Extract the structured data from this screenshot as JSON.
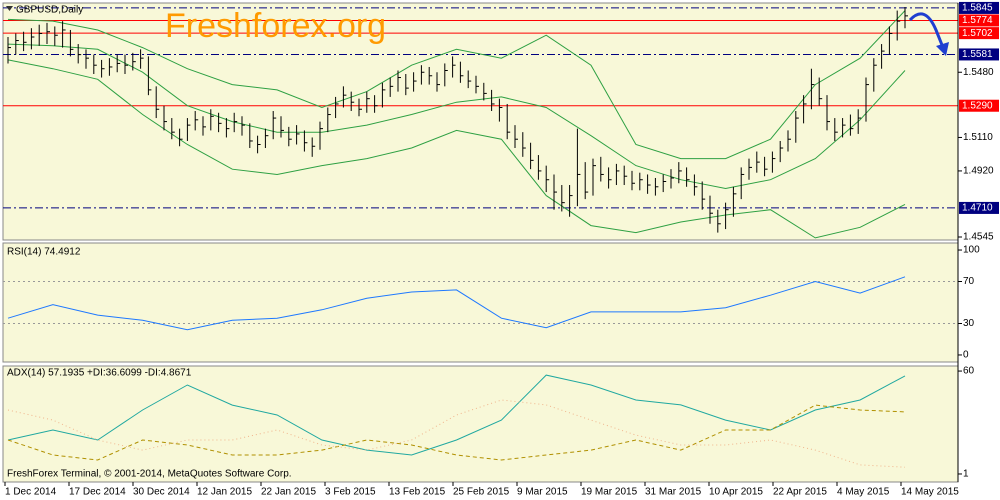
{
  "chart_data": [
    {
      "type": "ohlc",
      "title": "GBPUSD,Daily",
      "annotation": "Freshforex.org",
      "x_labels": [
        "1 Dec 2014",
        "17 Dec 2014",
        "30 Dec 2014",
        "12 Jan 2015",
        "22 Jan 2015",
        "3 Feb 2015",
        "13 Feb 2015",
        "25 Feb 2015",
        "9 Mar 2015",
        "19 Mar 2015",
        "31 Mar 2015",
        "10 Apr 2015",
        "22 Apr 2015",
        "4 May 2015",
        "14 May 2015"
      ],
      "color": "#000000",
      "high": [
        1.568,
        1.57,
        1.571,
        1.573,
        1.575,
        1.576,
        1.574,
        1.577,
        1.572,
        1.564,
        1.561,
        1.558,
        1.555,
        1.556,
        1.558,
        1.558,
        1.559,
        1.561,
        1.557,
        1.54,
        1.529,
        1.522,
        1.516,
        1.522,
        1.526,
        1.523,
        1.527,
        1.525,
        1.522,
        1.525,
        1.523,
        1.519,
        1.512,
        1.516,
        1.526,
        1.523,
        1.517,
        1.518,
        1.515,
        1.511,
        1.52,
        1.528,
        1.534,
        1.54,
        1.537,
        1.533,
        1.537,
        1.535,
        1.542,
        1.545,
        1.549,
        1.547,
        1.548,
        1.552,
        1.551,
        1.548,
        1.553,
        1.557,
        1.554,
        1.549,
        1.546,
        1.542,
        1.538,
        1.533,
        1.53,
        1.518,
        1.514,
        1.508,
        1.501,
        1.495,
        1.49,
        1.484,
        1.484,
        1.516,
        1.497,
        1.499,
        1.5,
        1.494,
        1.496,
        1.495,
        1.492,
        1.491,
        1.49,
        1.488,
        1.49,
        1.493,
        1.497,
        1.494,
        1.49,
        1.486,
        1.478,
        1.47,
        1.474,
        1.483,
        1.494,
        1.499,
        1.503,
        1.5,
        1.503,
        1.509,
        1.515,
        1.526,
        1.535,
        1.55,
        1.545,
        1.535,
        1.522,
        1.522,
        1.524,
        1.527,
        1.545,
        1.556,
        1.564,
        1.574,
        1.583,
        1.585
      ],
      "low": [
        1.553,
        1.558,
        1.56,
        1.561,
        1.563,
        1.564,
        1.563,
        1.562,
        1.557,
        1.553,
        1.55,
        1.547,
        1.545,
        1.546,
        1.548,
        1.547,
        1.549,
        1.55,
        1.535,
        1.522,
        1.515,
        1.51,
        1.506,
        1.509,
        1.515,
        1.512,
        1.515,
        1.514,
        1.511,
        1.514,
        1.512,
        1.505,
        1.502,
        1.505,
        1.51,
        1.511,
        1.506,
        1.507,
        1.503,
        1.5,
        1.504,
        1.514,
        1.522,
        1.528,
        1.526,
        1.523,
        1.525,
        1.525,
        1.528,
        1.534,
        1.537,
        1.535,
        1.537,
        1.541,
        1.541,
        1.537,
        1.54,
        1.545,
        1.542,
        1.539,
        1.536,
        1.532,
        1.526,
        1.52,
        1.51,
        1.505,
        1.5,
        1.493,
        1.487,
        1.48,
        1.47,
        1.469,
        1.466,
        1.472,
        1.476,
        1.478,
        1.486,
        1.482,
        1.484,
        1.484,
        1.481,
        1.481,
        1.479,
        1.478,
        1.48,
        1.482,
        1.485,
        1.483,
        1.478,
        1.47,
        1.462,
        1.457,
        1.459,
        1.466,
        1.476,
        1.487,
        1.491,
        1.489,
        1.491,
        1.497,
        1.503,
        1.508,
        1.519,
        1.527,
        1.529,
        1.515,
        1.509,
        1.511,
        1.512,
        1.513,
        1.52,
        1.537,
        1.55,
        1.558,
        1.566,
        1.573
      ],
      "close": [
        1.562,
        1.566,
        1.565,
        1.568,
        1.57,
        1.571,
        1.569,
        1.572,
        1.561,
        1.558,
        1.556,
        1.552,
        1.55,
        1.551,
        1.553,
        1.552,
        1.554,
        1.556,
        1.538,
        1.527,
        1.52,
        1.514,
        1.51,
        1.518,
        1.521,
        1.517,
        1.523,
        1.519,
        1.516,
        1.52,
        1.518,
        1.509,
        1.507,
        1.512,
        1.522,
        1.515,
        1.51,
        1.513,
        1.508,
        1.506,
        1.516,
        1.524,
        1.53,
        1.535,
        1.531,
        1.527,
        1.533,
        1.529,
        1.538,
        1.54,
        1.545,
        1.539,
        1.543,
        1.548,
        1.546,
        1.541,
        1.549,
        1.552,
        1.546,
        1.543,
        1.54,
        1.536,
        1.53,
        1.528,
        1.514,
        1.51,
        1.505,
        1.498,
        1.492,
        1.487,
        1.48,
        1.474,
        1.478,
        1.49,
        1.48,
        1.495,
        1.49,
        1.487,
        1.492,
        1.489,
        1.485,
        1.487,
        1.484,
        1.483,
        1.486,
        1.488,
        1.492,
        1.487,
        1.483,
        1.476,
        1.468,
        1.462,
        1.47,
        1.479,
        1.49,
        1.494,
        1.497,
        1.493,
        1.499,
        1.505,
        1.51,
        1.522,
        1.53,
        1.541,
        1.533,
        1.52,
        1.514,
        1.518,
        1.516,
        1.522,
        1.541,
        1.552,
        1.56,
        1.57,
        1.577,
        1.58
      ],
      "bands": [
        {
          "color": "#2ea043",
          "values": [
            1.578,
            1.577,
            1.572,
            1.562,
            1.55,
            1.541,
            1.538,
            1.528,
            1.537,
            1.552,
            1.561,
            1.556,
            1.569,
            1.552,
            1.507,
            1.499,
            1.499,
            1.51,
            1.541,
            1.556,
            1.583
          ]
        },
        {
          "color": "#2ea043",
          "values": [
            1.564,
            1.563,
            1.561,
            1.548,
            1.529,
            1.52,
            1.514,
            1.514,
            1.518,
            1.524,
            1.531,
            1.534,
            1.528,
            1.512,
            1.495,
            1.487,
            1.482,
            1.487,
            1.499,
            1.521,
            1.549
          ]
        },
        {
          "color": "#2ea043",
          "values": [
            1.555,
            1.55,
            1.544,
            1.524,
            1.507,
            1.493,
            1.49,
            1.495,
            1.499,
            1.505,
            1.515,
            1.51,
            1.478,
            1.461,
            1.457,
            1.463,
            1.467,
            1.47,
            1.454,
            1.46,
            1.473
          ]
        }
      ],
      "ylim": [
        1.4528,
        1.5873
      ],
      "yticks": [
        {
          "value": 1.548,
          "label": "1.5480"
        },
        {
          "value": 1.511,
          "label": "1.5110"
        },
        {
          "value": 1.492,
          "label": "1.4920"
        },
        1.4545
      ],
      "levels": [
        {
          "value": 1.5845,
          "label": "1.5845",
          "color": "#000080",
          "style": "dashdot"
        },
        {
          "value": 1.5774,
          "label": "1.5774",
          "color": "#ff0000",
          "style": "solid"
        },
        {
          "value": 1.5702,
          "label": "1.5702",
          "color": "#ff0000",
          "style": "solid"
        },
        {
          "value": 1.5581,
          "label": "1.5581",
          "color": "#000080",
          "style": "dashdot"
        },
        {
          "value": 1.529,
          "label": "1.5290",
          "color": "#ff0000",
          "style": "solid"
        },
        {
          "value": 1.471,
          "label": "1.4710",
          "color": "#000080",
          "style": "dashdot"
        }
      ]
    },
    {
      "type": "line",
      "title": "RSI(14) 74.4912",
      "series": [
        {
          "color": "#1e78ff",
          "values": [
            35,
            48,
            38,
            33,
            24,
            33,
            35,
            43,
            54,
            60,
            62,
            35,
            26,
            41,
            41,
            41,
            45,
            57,
            70,
            59,
            74.5
          ]
        }
      ],
      "ylim": [
        -6.7,
        106.7
      ],
      "yticks": [
        100,
        70,
        30,
        0
      ],
      "levels": [
        70,
        30
      ]
    },
    {
      "type": "line",
      "title": "ADX(14) 57.1935 +DI:36.6099 -DI:4.8671",
      "footer": "FreshForex Terminal, © 2001-2014, MetaQuotes Software Corp.",
      "series": [
        {
          "color": "#20a8a0",
          "style": "solid",
          "values": [
            20.5,
            26.2,
            20.5,
            37.7,
            52.0,
            40.5,
            34.8,
            20.5,
            14.7,
            11.9,
            20.5,
            31.9,
            57.7,
            52.0,
            43.4,
            40.6,
            31.9,
            26.2,
            37.7,
            43.4,
            57.2
          ]
        },
        {
          "color": "#b09000",
          "style": "dashed",
          "values": [
            20.5,
            11.9,
            9.0,
            20.5,
            17.6,
            11.9,
            11.9,
            14.7,
            20.5,
            17.6,
            11.9,
            9.0,
            11.9,
            14.7,
            20.5,
            14.7,
            26.2,
            26.2,
            40.5,
            37.7,
            36.6
          ]
        },
        {
          "color": "#f0b48c",
          "style": "dotted",
          "values": [
            37.7,
            31.9,
            20.5,
            14.7,
            20.5,
            20.5,
            26.2,
            17.6,
            14.7,
            20.5,
            34.8,
            43.4,
            40.6,
            31.9,
            23.3,
            17.6,
            17.6,
            20.5,
            14.7,
            6.2,
            4.9
          ]
        }
      ],
      "ylim": [
        -3.6,
        62.9
      ],
      "yticks": [
        60,
        1
      ]
    }
  ]
}
